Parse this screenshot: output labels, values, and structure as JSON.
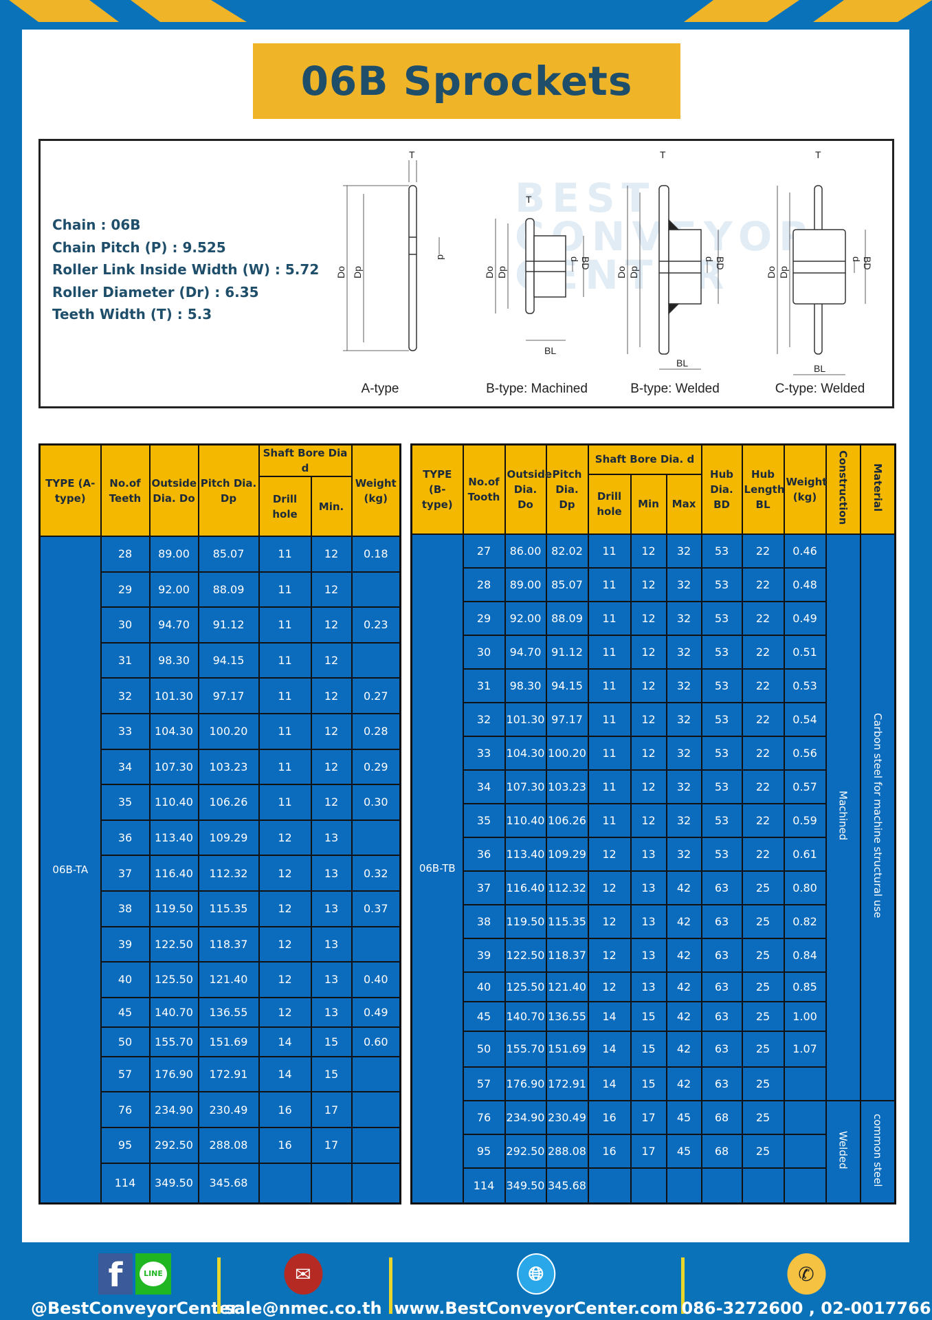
{
  "title": "06B Sprockets",
  "colors": {
    "brand_blue": "#0a72b8",
    "accent_yellow": "#f0b429",
    "table_blue": "#0b6cbd",
    "header_yellow": "#f5b800",
    "title_text": "#1f4e6b"
  },
  "specs": [
    "Chain  : 06B",
    "Chain Pitch (P)  :  9.525",
    "Roller Link Inside Width (W)  :  5.72",
    "Roller Diameter (Dr)  : 6.35",
    "Teeth Width (T)  :  5.3"
  ],
  "watermark": [
    "BEST",
    "CONVEYOR",
    "CENTER"
  ],
  "diagram": {
    "labels": [
      "A-type",
      "B-type: Machined",
      "B-type: Welded",
      "C-type: Welded"
    ],
    "dim": {
      "T": "T",
      "Do": "Do",
      "Dp": "Dp",
      "d": "d",
      "BD": "BD",
      "BL": "BL"
    }
  },
  "table_a": {
    "headers": {
      "type": "TYPE (A-type)",
      "teeth": "No.of Teeth",
      "do": "Outside Dia. Do",
      "dp": "Pitch Dia. Dp",
      "bore": "Shaft Bore Dia d",
      "drill": "Drill hole",
      "min": "Min.",
      "weight": "Weight (kg)"
    },
    "type_label": "06B-TA",
    "rows": [
      [
        "28",
        "89.00",
        "85.07",
        "11",
        "12",
        "0.18"
      ],
      [
        "29",
        "92.00",
        "88.09",
        "11",
        "12",
        ""
      ],
      [
        "30",
        "94.70",
        "91.12",
        "11",
        "12",
        "0.23"
      ],
      [
        "31",
        "98.30",
        "94.15",
        "11",
        "12",
        ""
      ],
      [
        "32",
        "101.30",
        "97.17",
        "11",
        "12",
        "0.27"
      ],
      [
        "33",
        "104.30",
        "100.20",
        "11",
        "12",
        "0.28"
      ],
      [
        "34",
        "107.30",
        "103.23",
        "11",
        "12",
        "0.29"
      ],
      [
        "35",
        "110.40",
        "106.26",
        "11",
        "12",
        "0.30"
      ],
      [
        "36",
        "113.40",
        "109.29",
        "12",
        "13",
        ""
      ],
      [
        "37",
        "116.40",
        "112.32",
        "12",
        "13",
        "0.32"
      ],
      [
        "38",
        "119.50",
        "115.35",
        "12",
        "13",
        "0.37"
      ],
      [
        "39",
        "122.50",
        "118.37",
        "12",
        "13",
        ""
      ],
      [
        "40",
        "125.50",
        "121.40",
        "12",
        "13",
        "0.40"
      ],
      [
        "45",
        "140.70",
        "136.55",
        "12",
        "13",
        "0.49"
      ],
      [
        "50",
        "155.70",
        "151.69",
        "14",
        "15",
        "0.60"
      ],
      [
        "57",
        "176.90",
        "172.91",
        "14",
        "15",
        ""
      ],
      [
        "76",
        "234.90",
        "230.49",
        "16",
        "17",
        ""
      ],
      [
        "95",
        "292.50",
        "288.08",
        "16",
        "17",
        ""
      ],
      [
        "114",
        "349.50",
        "345.68",
        "",
        "",
        ""
      ]
    ]
  },
  "table_b": {
    "headers": {
      "type": "TYPE (B-type)",
      "teeth": "No.of Tooth",
      "do": "Outside Dia. Do",
      "dp": "Pitch Dia. Dp",
      "bore": "Shaft Bore Dia. d",
      "drill": "Drill hole",
      "min": "Min",
      "max": "Max",
      "bd": "Hub Dia. BD",
      "bl": "Hub Length BL",
      "weight": "Weight (kg)",
      "construction": "Construction",
      "material": "Material"
    },
    "type_label": "06B-TB",
    "construction": [
      "Machined",
      "Welded"
    ],
    "material": [
      "Carbon steel for machine structural use",
      "common steel"
    ],
    "rows": [
      [
        "27",
        "86.00",
        "82.02",
        "11",
        "12",
        "32",
        "53",
        "22",
        "0.46"
      ],
      [
        "28",
        "89.00",
        "85.07",
        "11",
        "12",
        "32",
        "53",
        "22",
        "0.48"
      ],
      [
        "29",
        "92.00",
        "88.09",
        "11",
        "12",
        "32",
        "53",
        "22",
        "0.49"
      ],
      [
        "30",
        "94.70",
        "91.12",
        "11",
        "12",
        "32",
        "53",
        "22",
        "0.51"
      ],
      [
        "31",
        "98.30",
        "94.15",
        "11",
        "12",
        "32",
        "53",
        "22",
        "0.53"
      ],
      [
        "32",
        "101.30",
        "97.17",
        "11",
        "12",
        "32",
        "53",
        "22",
        "0.54"
      ],
      [
        "33",
        "104.30",
        "100.20",
        "11",
        "12",
        "32",
        "53",
        "22",
        "0.56"
      ],
      [
        "34",
        "107.30",
        "103.23",
        "11",
        "12",
        "32",
        "53",
        "22",
        "0.57"
      ],
      [
        "35",
        "110.40",
        "106.26",
        "11",
        "12",
        "32",
        "53",
        "22",
        "0.59"
      ],
      [
        "36",
        "113.40",
        "109.29",
        "12",
        "13",
        "32",
        "53",
        "22",
        "0.61"
      ],
      [
        "37",
        "116.40",
        "112.32",
        "12",
        "13",
        "42",
        "63",
        "25",
        "0.80"
      ],
      [
        "38",
        "119.50",
        "115.35",
        "12",
        "13",
        "42",
        "63",
        "25",
        "0.82"
      ],
      [
        "39",
        "122.50",
        "118.37",
        "12",
        "13",
        "42",
        "63",
        "25",
        "0.84"
      ],
      [
        "40",
        "125.50",
        "121.40",
        "12",
        "13",
        "42",
        "63",
        "25",
        "0.85"
      ],
      [
        "45",
        "140.70",
        "136.55",
        "14",
        "15",
        "42",
        "63",
        "25",
        "1.00"
      ],
      [
        "50",
        "155.70",
        "151.69",
        "14",
        "15",
        "42",
        "63",
        "25",
        "1.07"
      ],
      [
        "57",
        "176.90",
        "172.91",
        "14",
        "15",
        "42",
        "63",
        "25",
        ""
      ],
      [
        "76",
        "234.90",
        "230.49",
        "16",
        "17",
        "45",
        "68",
        "25",
        ""
      ],
      [
        "95",
        "292.50",
        "288.08",
        "16",
        "17",
        "45",
        "68",
        "25",
        ""
      ],
      [
        "114",
        "349.50",
        "345.68",
        "",
        "",
        "",
        "",
        "",
        ""
      ]
    ]
  },
  "footer": {
    "social": {
      "label": "@BestConveyorCenter",
      "icons": [
        "facebook-icon",
        "line-icon"
      ],
      "line_text": "LINE",
      "fb_text": "f"
    },
    "email": {
      "label": "sale@nmec.co.th",
      "icon": "email-icon"
    },
    "web": {
      "label": "www.BestConveyorCenter.com",
      "icon": "globe-icon"
    },
    "phone": {
      "label": "086-3272600 , 02-0017766",
      "icon": "phone-icon"
    }
  }
}
